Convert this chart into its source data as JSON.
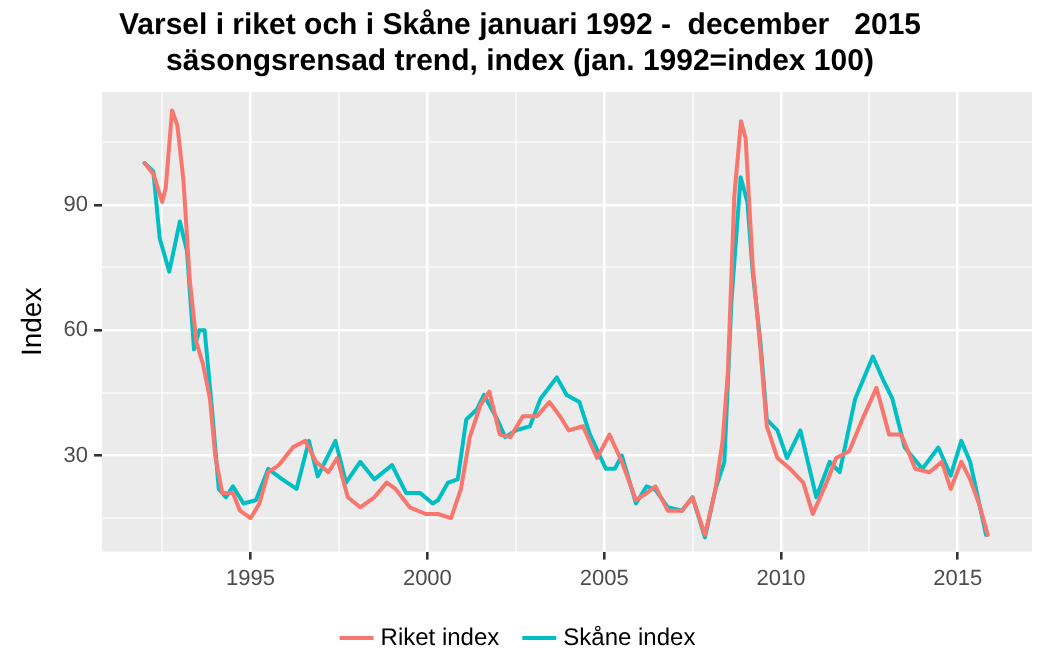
{
  "chart_data": {
    "type": "line",
    "title": [
      "Varsel i riket och i Skåne januari 1992 -  december   2015",
      "säsongsrensad trend, index (jan. 1992=index 100)"
    ],
    "ylabel": "Index",
    "xlim": [
      1990.8,
      2017.1
    ],
    "xticks": [
      {
        "value": 1992.5,
        "label": null
      },
      1995,
      {
        "value": 1997.5,
        "label": null
      },
      2000,
      {
        "value": 2002.5,
        "label": null
      },
      2005,
      {
        "value": 2007.5,
        "label": null
      },
      2010,
      {
        "value": 2012.5,
        "label": null
      },
      2015
    ],
    "ylim": [
      7,
      117
    ],
    "yticks": [
      {
        "value": 15,
        "label": null
      },
      30,
      {
        "value": 45,
        "label": null
      },
      60,
      {
        "value": 75,
        "label": null
      },
      90,
      {
        "value": 105,
        "label": null
      }
    ],
    "grid": true,
    "legend": "bottom",
    "line_style": "solid",
    "marker": "none",
    "series": [
      {
        "name": "Riket index",
        "color": "#f8766d",
        "x": [
          1992.0,
          1992.25,
          1992.5,
          1992.6,
          1992.78,
          1992.93,
          1993.1,
          1993.28,
          1993.47,
          1993.65,
          1993.85,
          1994.0,
          1994.2,
          1994.5,
          1994.7,
          1995.0,
          1995.25,
          1995.5,
          1995.8,
          1996.2,
          1996.55,
          1996.85,
          1997.2,
          1997.45,
          1997.75,
          1998.1,
          1998.5,
          1998.85,
          1999.1,
          1999.5,
          1999.95,
          2000.3,
          2000.67,
          2000.95,
          2001.2,
          2001.5,
          2001.75,
          2002.05,
          2002.35,
          2002.7,
          2003.1,
          2003.45,
          2003.75,
          2004.0,
          2004.4,
          2004.8,
          2005.15,
          2005.5,
          2005.9,
          2006.2,
          2006.45,
          2006.8,
          2007.2,
          2007.5,
          2007.85,
          2008.15,
          2008.35,
          2008.5,
          2008.68,
          2008.87,
          2009.0,
          2009.2,
          2009.42,
          2009.6,
          2009.9,
          2010.26,
          2010.63,
          2010.9,
          2011.29,
          2011.56,
          2011.93,
          2012.3,
          2012.7,
          2013.06,
          2013.4,
          2013.8,
          2014.2,
          2014.55,
          2014.8,
          2015.1,
          2015.35,
          2015.6,
          2015.85
        ],
        "values": [
          100,
          97.4,
          90.7,
          94,
          112.6,
          109,
          96,
          72,
          57,
          52,
          43.6,
          30,
          21,
          21,
          16.8,
          15,
          18.5,
          26,
          27.7,
          32,
          33.5,
          28.5,
          26,
          29.4,
          20,
          17.6,
          20,
          23.5,
          22,
          17.6,
          16,
          16,
          15,
          22,
          34.4,
          42,
          45.3,
          35,
          34.4,
          39.4,
          39.4,
          42.8,
          39.4,
          36,
          37,
          29.4,
          35,
          28.5,
          19.3,
          21,
          22.6,
          16.8,
          16.8,
          20,
          11,
          22,
          33.5,
          50,
          92,
          110,
          106,
          75.6,
          55.4,
          37,
          29.4,
          26.8,
          23.5,
          16,
          23.5,
          29.4,
          31,
          38.6,
          46.2,
          35,
          35,
          26.8,
          26,
          28.5,
          22,
          28.5,
          24.3,
          18.5,
          11
        ]
      },
      {
        "name": "Skåne index",
        "color": "#00bfc4",
        "x": [
          1992.0,
          1992.25,
          1992.43,
          1992.7,
          1993.0,
          1993.2,
          1993.4,
          1993.55,
          1993.7,
          1993.9,
          1994.1,
          1994.3,
          1994.5,
          1994.8,
          1995.15,
          1995.5,
          1995.9,
          1996.3,
          1996.65,
          1996.9,
          1997.4,
          1997.7,
          1998.1,
          1998.5,
          1999.0,
          1999.4,
          1999.8,
          2000.15,
          2000.3,
          2000.58,
          2000.86,
          2001.1,
          2001.4,
          2001.6,
          2001.98,
          2002.2,
          2002.5,
          2002.9,
          2003.2,
          2003.66,
          2003.94,
          2004.3,
          2004.6,
          2005.05,
          2005.3,
          2005.5,
          2005.9,
          2006.2,
          2006.45,
          2006.8,
          2007.2,
          2007.5,
          2007.85,
          2008.15,
          2008.4,
          2008.6,
          2008.86,
          2009.05,
          2009.2,
          2009.42,
          2009.6,
          2009.9,
          2010.17,
          2010.55,
          2011.0,
          2011.38,
          2011.66,
          2012.1,
          2012.6,
          2012.9,
          2013.15,
          2013.5,
          2014.0,
          2014.45,
          2014.8,
          2015.1,
          2015.35,
          2015.8
        ],
        "values": [
          100,
          98,
          82,
          74,
          86,
          79,
          55.4,
          60,
          60,
          42,
          22,
          20,
          22.6,
          18.5,
          19.3,
          26.8,
          24.3,
          22,
          33.5,
          25,
          33.5,
          23.5,
          28.5,
          24.3,
          27.7,
          21,
          21,
          18.5,
          19.3,
          23.5,
          24.3,
          38.6,
          41,
          44.5,
          38.6,
          34.4,
          36,
          37,
          43.6,
          48.7,
          44.5,
          42.8,
          35,
          26.8,
          26.8,
          30,
          18.5,
          22.6,
          21.8,
          17.6,
          16.8,
          20,
          10.4,
          22,
          28.5,
          67,
          96.6,
          90.7,
          74,
          57,
          38.6,
          36,
          29.4,
          36,
          20,
          28.5,
          26,
          43.6,
          53.7,
          47.9,
          43.6,
          31.9,
          26.8,
          31.9,
          25.2,
          33.5,
          28.5,
          11
        ]
      }
    ]
  }
}
